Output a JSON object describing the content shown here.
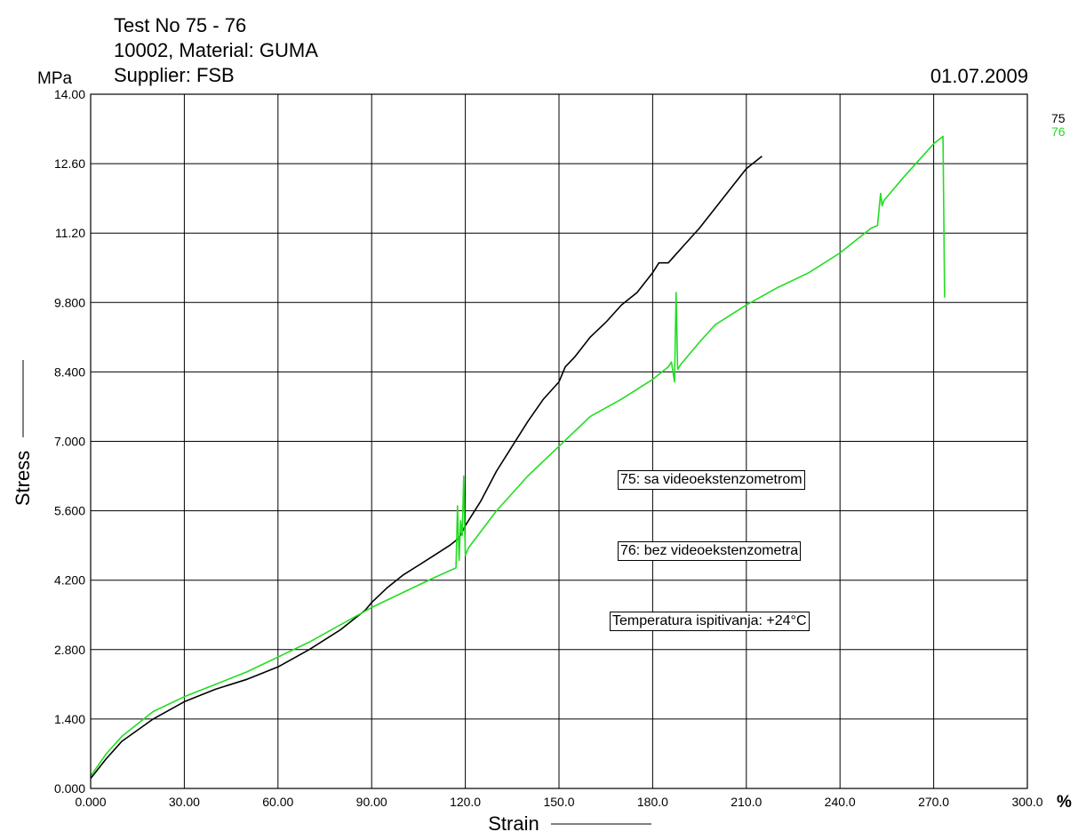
{
  "header": {
    "title_line1": "Test No  75 - 76",
    "title_line2": "10002, Material: GUMA",
    "title_line3": "Supplier: FSB",
    "date": "01.07.2009"
  },
  "chart_data": {
    "type": "line",
    "title": "Test No  75 - 76",
    "xlabel": "Strain",
    "ylabel": "Stress",
    "x_unit": "%",
    "y_unit": "MPa",
    "xlim": [
      0,
      300
    ],
    "ylim": [
      0,
      14
    ],
    "x_ticks": [
      "0.000",
      "30.00",
      "60.00",
      "90.00",
      "120.0",
      "150.0",
      "180.0",
      "210.0",
      "240.0",
      "270.0",
      "300.0"
    ],
    "y_ticks": [
      "0.000",
      "1.400",
      "2.800",
      "4.200",
      "5.600",
      "7.000",
      "8.400",
      "9.800",
      "11.20",
      "12.60",
      "14.00"
    ],
    "grid": true,
    "legend_position": "top-right",
    "series": [
      {
        "name": "75",
        "color": "#000000",
        "x": [
          0,
          5,
          10,
          20,
          30,
          40,
          50,
          60,
          70,
          80,
          88,
          90,
          95,
          100,
          105,
          110,
          115,
          118,
          120,
          125,
          130,
          135,
          140,
          145,
          150,
          152,
          155,
          160,
          165,
          170,
          175,
          180,
          182,
          185,
          190,
          195,
          200,
          205,
          210,
          215
        ],
        "y": [
          0.2,
          0.6,
          0.95,
          1.4,
          1.75,
          2.0,
          2.2,
          2.45,
          2.8,
          3.2,
          3.6,
          3.75,
          4.05,
          4.3,
          4.5,
          4.7,
          4.9,
          5.05,
          5.3,
          5.8,
          6.4,
          6.9,
          7.4,
          7.85,
          8.2,
          8.5,
          8.7,
          9.1,
          9.4,
          9.75,
          10.0,
          10.4,
          10.6,
          10.6,
          10.95,
          11.3,
          11.7,
          12.1,
          12.5,
          12.75
        ]
      },
      {
        "name": "76",
        "color": "#22dd22",
        "x": [
          0,
          5,
          10,
          20,
          30,
          40,
          50,
          60,
          70,
          80,
          90,
          100,
          110,
          117,
          117.5,
          118,
          118.5,
          119,
          119.5,
          120,
          121,
          130,
          140,
          150,
          160,
          170,
          180,
          185,
          186,
          187,
          187.5,
          188,
          189,
          195,
          200,
          210,
          220,
          230,
          240,
          250,
          252,
          253,
          253.5,
          254,
          260,
          270,
          273,
          273.5
        ],
        "y": [
          0.25,
          0.7,
          1.05,
          1.55,
          1.85,
          2.1,
          2.35,
          2.65,
          2.95,
          3.3,
          3.65,
          3.95,
          4.25,
          4.45,
          5.7,
          4.6,
          5.4,
          5.1,
          6.3,
          4.7,
          4.85,
          5.6,
          6.3,
          6.9,
          7.5,
          7.85,
          8.25,
          8.5,
          8.6,
          8.2,
          10.0,
          8.45,
          8.55,
          9.0,
          9.35,
          9.75,
          10.1,
          10.4,
          10.8,
          11.3,
          11.35,
          12.0,
          11.75,
          11.85,
          12.3,
          13.0,
          13.15,
          9.9
        ]
      }
    ],
    "annotations": [
      "75: sa videoekstenzometrom",
      "76: bez videoekstenzometra",
      "Temperatura ispitivanja: +24°C"
    ]
  }
}
